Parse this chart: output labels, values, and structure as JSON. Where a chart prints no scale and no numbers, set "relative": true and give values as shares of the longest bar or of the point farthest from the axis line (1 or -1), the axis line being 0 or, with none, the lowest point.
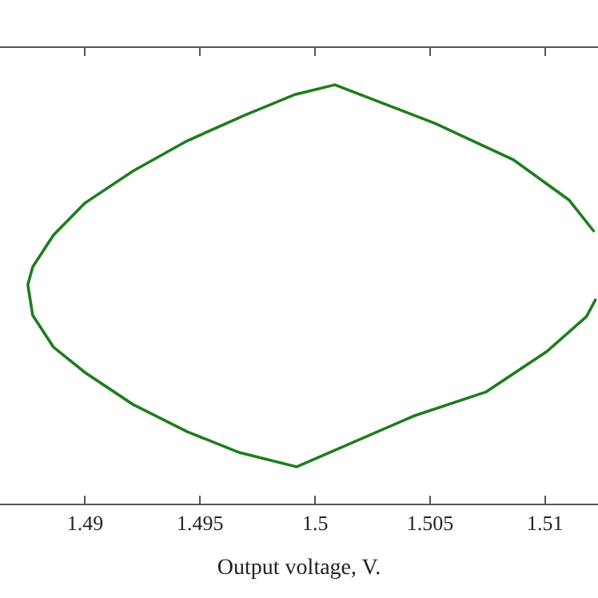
{
  "chart_data": {
    "type": "line",
    "xlabel": "Output voltage, V.",
    "relative": true,
    "x": [
      1.51214,
      1.51104,
      1.50862,
      1.50522,
      1.50086,
      1.49913,
      1.49692,
      1.49443,
      1.49208,
      1.49,
      1.48862,
      1.48772,
      1.48751,
      1.48772,
      1.48862,
      1.49,
      1.49208,
      1.49443,
      1.49671,
      1.4992,
      1.50432,
      1.50744,
      1.51007,
      1.5118,
      1.51221
    ],
    "series": [
      {
        "color": "#1e7d1e",
        "values": [
          0.649,
          0.725,
          0.821,
          0.908,
          1.0,
          0.977,
          0.927,
          0.866,
          0.794,
          0.718,
          0.641,
          0.565,
          0.523,
          0.45,
          0.374,
          0.313,
          0.237,
          0.172,
          0.122,
          0.088,
          0.21,
          0.267,
          0.363,
          0.447,
          0.489
        ]
      }
    ],
    "xlim": [
      1.4863,
      1.5123
    ],
    "xticks": [
      1.49,
      1.495,
      1.5,
      1.505,
      1.51
    ],
    "marker": "none",
    "line_style": "solid"
  }
}
